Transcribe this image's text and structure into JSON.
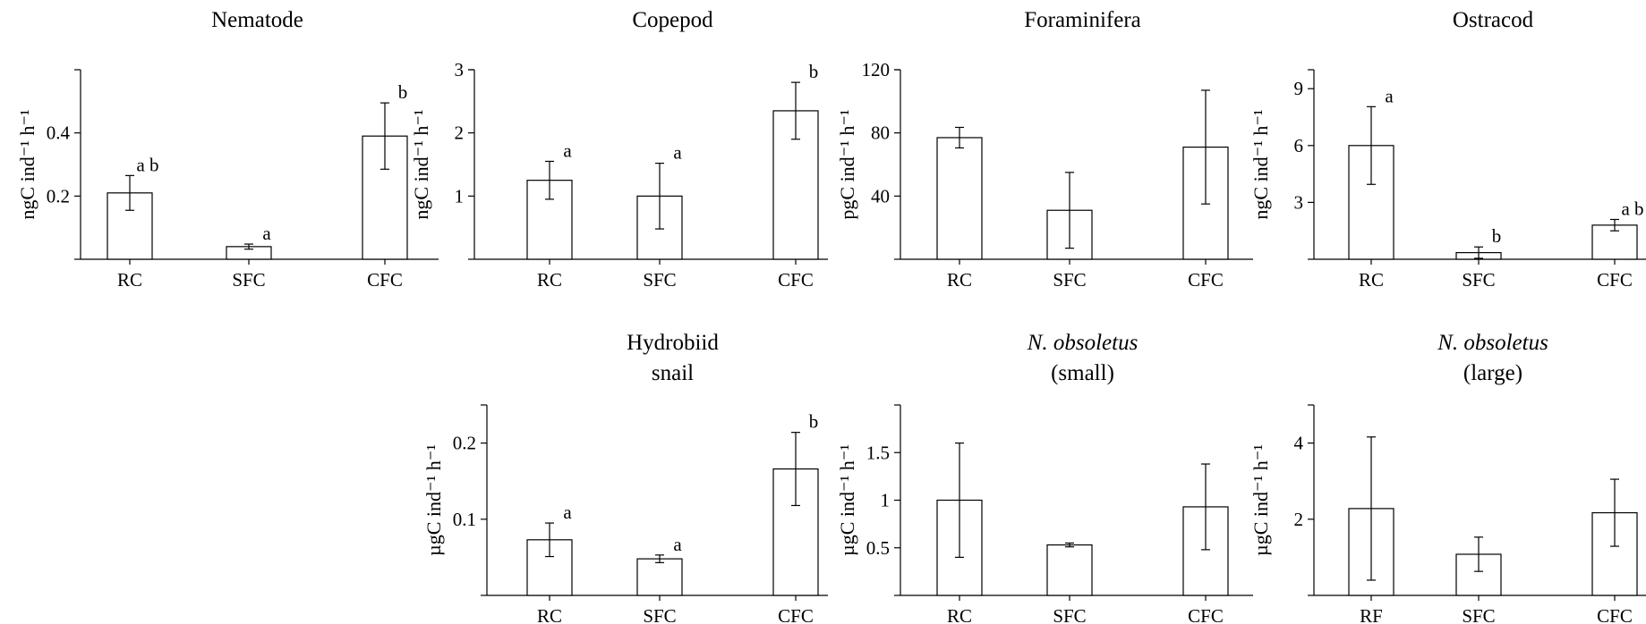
{
  "chart_data": [
    {
      "type": "bar",
      "title": [
        "Nematode"
      ],
      "ylabel": "ngC ind⁻¹ h⁻¹",
      "categories": [
        "RC",
        "SFC",
        "CFC"
      ],
      "values": [
        0.21,
        0.04,
        0.39
      ],
      "error": [
        0.055,
        0.008,
        0.105
      ],
      "significance": [
        "a b",
        "a",
        "b"
      ],
      "ylim": [
        0,
        0.6
      ],
      "yticks": [
        0.2,
        0.4
      ]
    },
    {
      "type": "bar",
      "title": [
        "Copepod"
      ],
      "ylabel": "ngC ind⁻¹ h⁻¹",
      "categories": [
        "RC",
        "SFC",
        "CFC"
      ],
      "values": [
        1.25,
        1.0,
        2.35
      ],
      "error": [
        0.3,
        0.52,
        0.45
      ],
      "significance": [
        "a",
        "a",
        "b"
      ],
      "ylim": [
        0,
        3
      ],
      "yticks": [
        1,
        2,
        3
      ]
    },
    {
      "type": "bar",
      "title": [
        "Foraminifera"
      ],
      "ylabel": "pgC ind⁻¹ h⁻¹",
      "categories": [
        "RC",
        "SFC",
        "CFC"
      ],
      "values": [
        77,
        31,
        71
      ],
      "error": [
        6.5,
        24,
        36
      ],
      "significance": [
        "",
        "",
        ""
      ],
      "ylim": [
        0,
        120
      ],
      "yticks": [
        40,
        80,
        120
      ]
    },
    {
      "type": "bar",
      "title": [
        "Ostracod"
      ],
      "ylabel": "ngC ind⁻¹ h⁻¹",
      "categories": [
        "RC",
        "SFC",
        "CFC"
      ],
      "values": [
        6.0,
        0.35,
        1.8
      ],
      "error": [
        2.05,
        0.3,
        0.3
      ],
      "significance": [
        "a",
        "b",
        "a b"
      ],
      "ylim": [
        0,
        10
      ],
      "yticks": [
        3,
        6,
        9
      ]
    },
    {
      "type": "bar",
      "title": [
        "Hydrobiid",
        "snail"
      ],
      "ylabel": "µgC ind⁻¹ h⁻¹",
      "categories": [
        "RC",
        "SFC",
        "CFC"
      ],
      "values": [
        0.073,
        0.048,
        0.166
      ],
      "error": [
        0.022,
        0.005,
        0.048
      ],
      "significance": [
        "a",
        "a",
        "b"
      ],
      "ylim": [
        0,
        0.25
      ],
      "yticks": [
        0.1,
        0.2
      ]
    },
    {
      "type": "bar",
      "title": [
        "N. obsoletus",
        "(small)"
      ],
      "title_italic": [
        true,
        false
      ],
      "ylabel": "µgC ind⁻¹ h⁻¹",
      "categories": [
        "RC",
        "SFC",
        "CFC"
      ],
      "values": [
        1.0,
        0.53,
        0.93
      ],
      "error": [
        0.6,
        0.02,
        0.45
      ],
      "significance": [
        "",
        "",
        ""
      ],
      "ylim": [
        0,
        2
      ],
      "yticks": [
        0.5,
        1,
        1.5
      ]
    },
    {
      "type": "bar",
      "title": [
        "N. obsoletus",
        "(large)"
      ],
      "title_italic": [
        true,
        false
      ],
      "ylabel": "µgC ind⁻¹ h⁻¹",
      "categories": [
        "RF",
        "SFC",
        "CFC"
      ],
      "values": [
        2.28,
        1.08,
        2.17
      ],
      "error": [
        1.88,
        0.45,
        0.88
      ],
      "significance": [
        "",
        "",
        ""
      ],
      "ylim": [
        0,
        5
      ],
      "yticks": [
        2,
        4
      ]
    }
  ]
}
